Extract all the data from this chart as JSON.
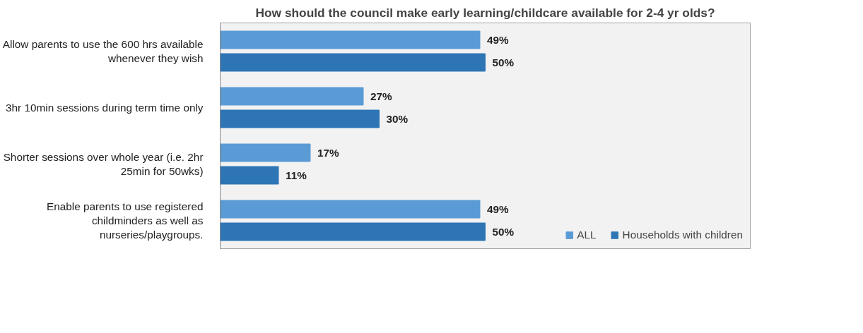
{
  "chart_data": {
    "type": "bar",
    "orientation": "horizontal",
    "title": "How should the council make early learning/childcare available for 2-4 yr olds?",
    "categories": [
      "Allow parents to use the 600 hrs available whenever they wish",
      "3hr 10min sessions during term time only",
      "Shorter sessions over whole year (i.e. 2hr 25min for 50wks)",
      "Enable parents to use registered childminders as well as nurseries/playgroups."
    ],
    "series": [
      {
        "name": "ALL",
        "color": "#5b9bd5",
        "values": [
          49,
          27,
          17,
          49
        ],
        "value_labels": [
          "49%",
          "27%",
          "17%",
          "49%"
        ]
      },
      {
        "name": "Households with children",
        "color": "#2e75b6",
        "values": [
          50,
          30,
          11,
          50
        ],
        "value_labels": [
          "50%",
          "30%",
          "11%",
          "50%"
        ]
      }
    ],
    "xlim": [
      0,
      100
    ],
    "legend": "bottom right",
    "tick_labels": "y"
  }
}
